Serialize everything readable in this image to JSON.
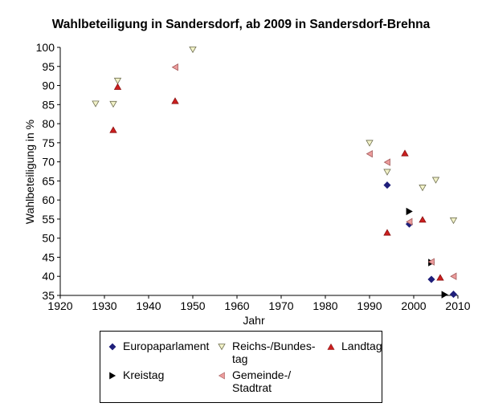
{
  "chart_data": {
    "type": "scatter",
    "title": "Wahlbeteiligung in Sandersdorf, ab 2009 in Sandersdorf-Brehna",
    "xlabel": "Jahr",
    "ylabel": "Wahlbeteiligung in %",
    "xlim": [
      1920,
      2010
    ],
    "ylim": [
      35,
      100
    ],
    "xticks": [
      1920,
      1930,
      1940,
      1950,
      1960,
      1970,
      1980,
      1990,
      2000,
      2010
    ],
    "yticks": [
      35,
      40,
      45,
      50,
      55,
      60,
      65,
      70,
      75,
      80,
      85,
      90,
      95,
      100
    ],
    "grid": false,
    "legend_position": "bottom",
    "series": [
      {
        "name": "Europaparlament",
        "marker": "diamond",
        "color": "#1f1f7a",
        "points": [
          [
            1994,
            63.9
          ],
          [
            1999,
            53.7
          ],
          [
            2004,
            39.2
          ],
          [
            2009,
            35.3
          ]
        ]
      },
      {
        "name": "Reichs-/Bundes-\ntag",
        "marker": "triangle-down",
        "color": "#f2f2c8",
        "points": [
          [
            1928,
            85.2
          ],
          [
            1932,
            85.1
          ],
          [
            1933,
            91.2
          ],
          [
            1950,
            99.4
          ],
          [
            1990,
            74.9
          ],
          [
            1994,
            67.3
          ],
          [
            2002,
            63.2
          ],
          [
            2005,
            65.2
          ],
          [
            2009,
            54.6
          ]
        ]
      },
      {
        "name": "Landtag",
        "marker": "triangle-up",
        "color": "#cc1f1f",
        "points": [
          [
            1932,
            78.4
          ],
          [
            1933,
            89.7
          ],
          [
            1946,
            86.0
          ],
          [
            1994,
            51.5
          ],
          [
            1998,
            72.3
          ],
          [
            2002,
            54.9
          ],
          [
            2006,
            39.7
          ]
        ]
      },
      {
        "name": "Kreistag",
        "marker": "triangle-right",
        "color": "#000000",
        "points": [
          [
            1999,
            57.0
          ],
          [
            2004,
            43.6
          ],
          [
            2007,
            35.2
          ]
        ]
      },
      {
        "name": "Gemeinde-/\nStadtrat",
        "marker": "triangle-left",
        "color": "#ec9c9c",
        "points": [
          [
            1946,
            94.8
          ],
          [
            1990,
            72.1
          ],
          [
            1994,
            69.9
          ],
          [
            1999,
            54.3
          ],
          [
            2004,
            43.8
          ],
          [
            2009,
            40.0
          ]
        ]
      }
    ]
  }
}
